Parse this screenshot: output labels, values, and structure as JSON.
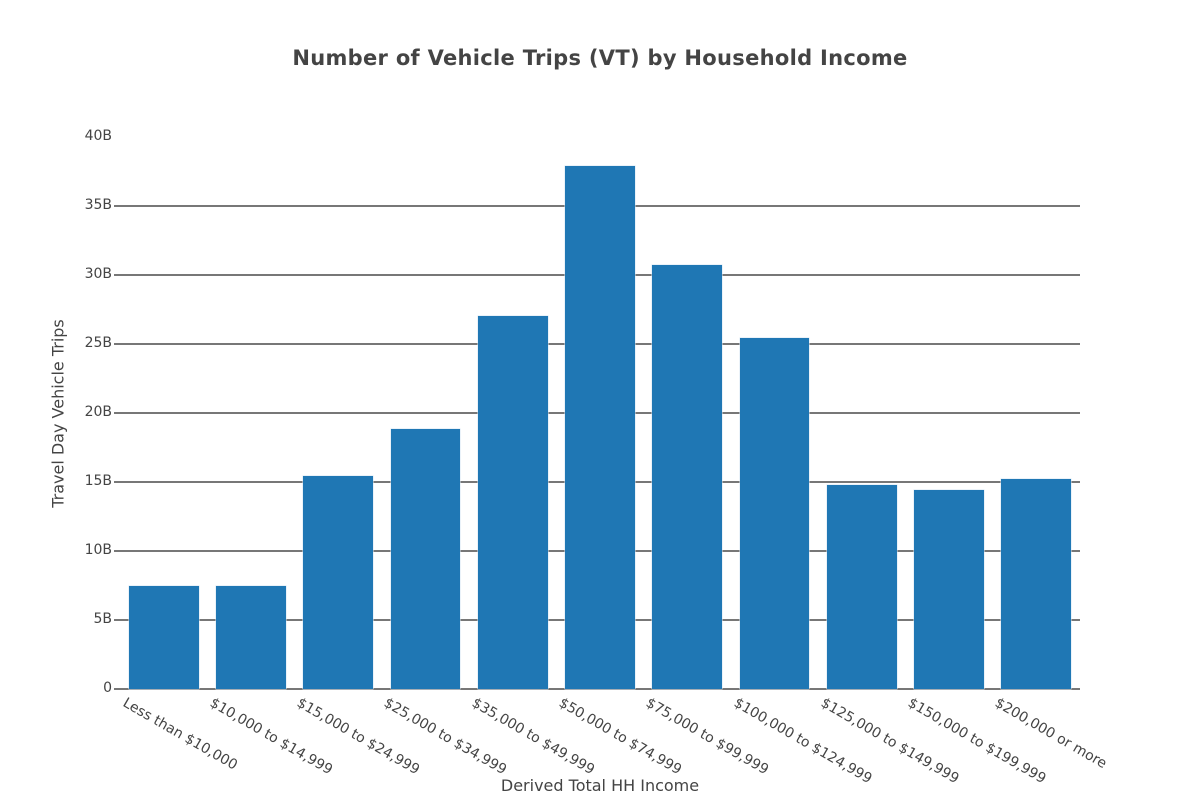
{
  "chart_data": {
    "type": "bar",
    "title": "Number of Vehicle Trips (VT) by Household Income",
    "xlabel": "Derived Total HH Income",
    "ylabel": "Travel Day Vehicle Trips",
    "categories": [
      "Less than $10,000",
      "$10,000 to $14,999",
      "$15,000 to $24,999",
      "$25,000 to $34,999",
      "$35,000 to $49,999",
      "$50,000 to $74,999",
      "$75,000 to $99,999",
      "$100,000 to $124,999",
      "$125,000 to $149,999",
      "$150,000 to $199,999",
      "$200,000 or more"
    ],
    "values": [
      7460000000.0,
      7460000000.0,
      15450000000.0,
      18850000000.0,
      27050000000.0,
      37900000000.0,
      30700000000.0,
      25400000000.0,
      14800000000.0,
      14450000000.0,
      15200000000.0
    ],
    "ylim": [
      0,
      40000000000.0
    ],
    "yticks": [
      0,
      5000000000.0,
      10000000000.0,
      15000000000.0,
      20000000000.0,
      25000000000.0,
      30000000000.0,
      35000000000.0,
      40000000000.0
    ],
    "ytick_labels": [
      "0",
      "5B",
      "10B",
      "15B",
      "20B",
      "25B",
      "30B",
      "35B",
      "40B"
    ],
    "grid": true,
    "legend": null,
    "bar_color": "#1f77b4"
  },
  "colors": {
    "bar": "#1f77b4",
    "grid": "#777777",
    "text": "#444444"
  }
}
